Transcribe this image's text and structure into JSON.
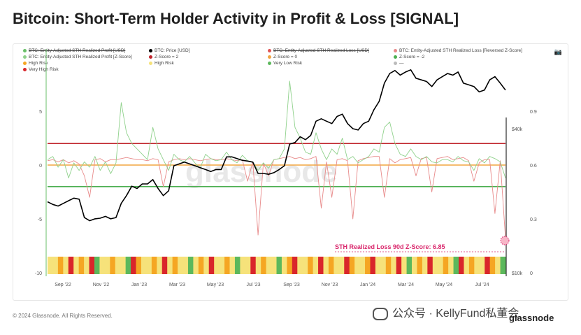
{
  "title": "Bitcoin: Short-Term Holder Activity in Profit & Loss [SIGNAL]",
  "legend": [
    {
      "label": "BTC: Entity-Adjusted STH Realized Profit [USD]",
      "color": "#6abf69",
      "struck": true
    },
    {
      "label": "BTC: Price [USD]",
      "color": "#000000",
      "struck": false
    },
    {
      "label": "BTC: Entity-Adjusted STH Realized Loss [USD]",
      "color": "#e05555",
      "struck": true
    },
    {
      "label": "BTC: Entity-Adjusted STH Realized Loss [Reversed Z-Score]",
      "color": "#e88a8a",
      "struck": false
    },
    {
      "label": "BTC: Entity-Adjusted STH Realized Profit [Z-Score]",
      "color": "#8fd18b",
      "struck": false
    },
    {
      "label": "Z-Score = 2",
      "color": "#c0262d",
      "struck": false
    },
    {
      "label": "Z-Score = 0",
      "color": "#f2a541",
      "struck": false
    },
    {
      "label": "Z-Score = -2",
      "color": "#4caf50",
      "struck": false
    },
    {
      "label": "High Risk",
      "color": "#f5a623",
      "struck": false
    },
    {
      "label": "High Risk",
      "color": "#f6e27a",
      "struck": false
    },
    {
      "label": "Very Low Risk",
      "color": "#5cb85c",
      "struck": false
    },
    {
      "label": "—",
      "color": "#bbbbbb",
      "struck": false
    },
    {
      "label": "Very High Risk",
      "color": "#d9262b",
      "struck": false
    }
  ],
  "camera_icon": "camera-icon",
  "watermark": "glassnode",
  "annotation": "STH Realized Loss 90d Z-Score: 6.85",
  "footer": {
    "copyright": "© 2024 Glassnode. All Rights Reserved.",
    "brand": "glassnode",
    "wechat": "公众号 · KellyFund私董会"
  },
  "chart_data": {
    "type": "line",
    "title": "Bitcoin: Short-Term Holder Activity in Profit & Loss [SIGNAL]",
    "x_ticks": [
      "Sep '22",
      "Nov '22",
      "Jan '23",
      "Mar '23",
      "May '23",
      "Jul '23",
      "Sep '23",
      "Nov '23",
      "Jan '24",
      "Mar '24",
      "May '24",
      "Jul '24"
    ],
    "y_left_ticks": [
      5,
      0,
      -5,
      -10
    ],
    "y_left_range": [
      -10,
      10
    ],
    "y_mid_ticks": [
      "$40k",
      "$10k"
    ],
    "y_right_ticks": [
      0.9,
      0.6,
      0.3,
      0
    ],
    "thresholds": [
      {
        "name": "Z-Score = 2",
        "value": 2,
        "color": "#c0262d"
      },
      {
        "name": "Z-Score = 0",
        "value": 0,
        "color": "#f2a541"
      },
      {
        "name": "Z-Score = -2",
        "value": -2,
        "color": "#4caf50"
      }
    ],
    "series": [
      {
        "name": "BTC: Price [USD]",
        "color": "#000000",
        "values": [
          19800,
          19300,
          19000,
          19500,
          20000,
          20500,
          20300,
          17000,
          16500,
          16800,
          16900,
          17200,
          16800,
          17000,
          19500,
          21000,
          23000,
          22500,
          23500,
          23500,
          24500,
          22500,
          21000,
          22000,
          28000,
          28500,
          29000,
          28500,
          28000,
          27500,
          27000,
          26500,
          27000,
          27000,
          30500,
          30500,
          30000,
          29500,
          29300,
          29000,
          26000,
          26000,
          25800,
          26200,
          27000,
          28000,
          34500,
          35000,
          37000,
          36000,
          37500,
          43000,
          44000,
          43000,
          42000,
          45000,
          46000,
          42000,
          40000,
          39500,
          42000,
          43000,
          48000,
          52000,
          62000,
          68000,
          70000,
          67000,
          69000,
          70500,
          65000,
          64000,
          63000,
          60000,
          64000,
          66000,
          68000,
          67000,
          69000,
          62000,
          61000,
          60000,
          57000,
          58000,
          64000,
          66000,
          62000,
          58000
        ]
      },
      {
        "name": "BTC: Entity-Adjusted STH Realized Profit [Z-Score]",
        "color": "#8fd18b",
        "values": [
          0.5,
          0.8,
          -0.2,
          0.5,
          -1.2,
          0.2,
          -0.5,
          0.3,
          -0.2,
          0.8,
          -0.5,
          0.3,
          -0.8,
          0.2,
          5.8,
          3,
          2,
          1.5,
          1,
          0.5,
          3.5,
          1.5,
          0.5,
          -0.5,
          1,
          0.5,
          0.3,
          0.8,
          0.2,
          -0.3,
          1,
          0.6,
          0.4,
          0.5,
          1.2,
          0.5,
          0.2,
          0.9,
          0.4,
          0.3,
          -0.5,
          0.2,
          -0.3,
          0.5,
          0.6,
          1.5,
          7.8,
          3.5,
          2.5,
          1.2,
          1,
          3,
          1.5,
          0.5,
          1.5,
          1,
          2.5,
          0.5,
          0.8,
          0.2,
          0.5,
          0.8,
          1.5,
          1.2,
          3.5,
          4,
          2,
          1,
          0.8,
          1.5,
          0.8,
          0.5,
          0.8,
          0.3,
          0.2,
          0.5,
          0.5,
          0.3,
          0.8,
          0.4,
          0.3,
          -0.5,
          0.6,
          0.2,
          0.8,
          0.6,
          0.3,
          -1.2
        ]
      },
      {
        "name": "BTC: Entity-Adjusted STH Realized Loss [Reversed Z-Score]",
        "color": "#e88a8a",
        "values": [
          0.4,
          0.5,
          0.3,
          0.5,
          0.2,
          0.4,
          0.1,
          -1,
          -3,
          0.5,
          0.6,
          0.3,
          0.5,
          0.5,
          0.6,
          0.7,
          0.6,
          0.5,
          0.5,
          0.4,
          0.6,
          0.5,
          -2,
          0.3,
          0.5,
          0.6,
          0.5,
          0.6,
          0.5,
          0.4,
          0.5,
          0.6,
          0.5,
          0.5,
          0.6,
          0.5,
          0.4,
          0.5,
          -1.5,
          0.3,
          -6.5,
          0.2,
          -1,
          0.5,
          0.6,
          0.7,
          0.8,
          0.6,
          0.7,
          0.5,
          0.6,
          0.8,
          -4,
          0.3,
          -3,
          0.5,
          0.6,
          0.4,
          -5,
          0.4,
          0.6,
          0.7,
          0.8,
          0.8,
          -3,
          0.6,
          0.2,
          0.5,
          0.6,
          0.7,
          -1,
          0.6,
          0.7,
          -2.5,
          0.6,
          0.7,
          0.8,
          0.5,
          0.6,
          0.7,
          0.4,
          -1.5,
          0.2,
          0.5,
          0.5,
          -4.5,
          0.4,
          -6.8
        ]
      }
    ],
    "risk_band": [
      "yellow",
      "yellow",
      "orange",
      "yellow",
      "red",
      "yellow",
      "orange",
      "yellow",
      "red",
      "green",
      "yellow",
      "yellow",
      "orange",
      "yellow",
      "yellow",
      "green",
      "red",
      "orange",
      "yellow",
      "yellow",
      "orange",
      "yellow",
      "red",
      "yellow",
      "orange",
      "yellow",
      "yellow",
      "green",
      "yellow",
      "orange",
      "yellow",
      "red",
      "yellow",
      "yellow",
      "orange",
      "yellow",
      "green",
      "yellow",
      "yellow",
      "red",
      "yellow",
      "orange",
      "yellow",
      "yellow",
      "green",
      "yellow",
      "orange",
      "red",
      "yellow",
      "yellow",
      "orange",
      "yellow",
      "red",
      "yellow",
      "orange",
      "yellow",
      "yellow",
      "red",
      "orange",
      "yellow",
      "yellow",
      "orange",
      "red",
      "yellow",
      "yellow",
      "orange",
      "yellow",
      "red",
      "yellow",
      "green",
      "yellow",
      "orange",
      "yellow",
      "red",
      "yellow",
      "yellow",
      "orange",
      "yellow",
      "green",
      "red",
      "yellow",
      "orange",
      "yellow",
      "yellow",
      "red",
      "orange",
      "yellow",
      "green"
    ]
  }
}
